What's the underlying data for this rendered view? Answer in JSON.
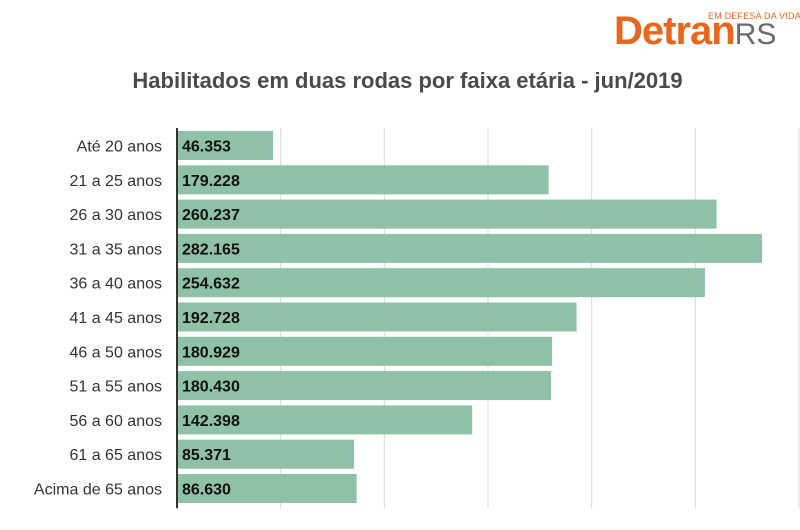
{
  "brand": {
    "name": "Detran",
    "suffix": "RS",
    "tagline": "EM DEFESA DA VIDA"
  },
  "colors": {
    "bar": "#8fc1a6",
    "axis": "#333333",
    "grid": "#d9d9d9",
    "accent": "#e8671c"
  },
  "chart_data": {
    "type": "bar",
    "orientation": "horizontal",
    "title": "Habilitados em duas rodas por faixa etária - jun/2019",
    "xlabel": "",
    "ylabel": "",
    "xlim": [
      0,
      300000
    ],
    "grid": true,
    "categories": [
      "Até 20 anos",
      "21 a 25 anos",
      "26 a 30 anos",
      "31 a 35 anos",
      "36 a 40 anos",
      "41 a 45 anos",
      "46 a 50 anos",
      "51 a 55 anos",
      "56 a 60 anos",
      "61 a 65 anos",
      "Acima de 65 anos"
    ],
    "values": [
      46353,
      179228,
      260237,
      282165,
      254632,
      192728,
      180929,
      180430,
      142398,
      85371,
      86630
    ],
    "value_labels": [
      "46.353",
      "179.228",
      "260.237",
      "282.165",
      "254.632",
      "192.728",
      "180.929",
      "180.430",
      "142.398",
      "85.371",
      "86.630"
    ]
  }
}
